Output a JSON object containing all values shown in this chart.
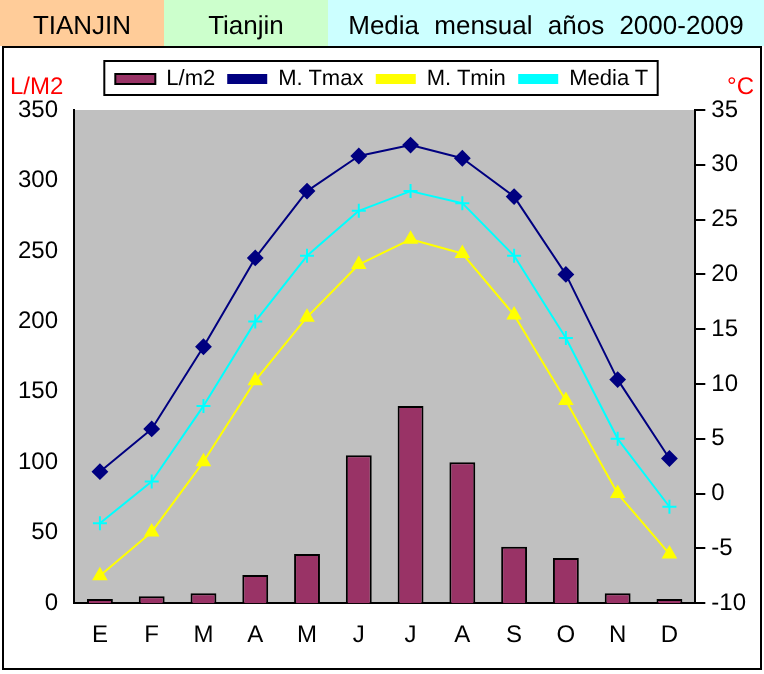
{
  "chart_data": {
    "type": "bar",
    "title": "TIANJIN",
    "subtitle": "Tianjin",
    "annotations": [
      "Media   mensual   años   2000-2009"
    ],
    "ylabel": "L/M2",
    "y2label": "°C",
    "categories": [
      "E",
      "F",
      "M",
      "A",
      "M",
      "J",
      "J",
      "A",
      "S",
      "O",
      "N",
      "D"
    ],
    "series": [
      {
        "name": "L/m2",
        "color": "#993366",
        "values": [
          3,
          5,
          7,
          20,
          35,
          105,
          140,
          100,
          40,
          32,
          7,
          3
        ]
      },
      {
        "name": "M. Tmax",
        "type": "line",
        "axis": "y2",
        "marker": "diamond",
        "color": "#000080",
        "values": [
          2,
          5.9,
          13.4,
          21.5,
          27.6,
          30.8,
          31.8,
          30.6,
          27.1,
          20,
          10.4,
          3.2
        ]
      },
      {
        "name": "M. Tmin",
        "type": "line",
        "axis": "y2",
        "marker": "triangle",
        "color": "#ffff00",
        "values": [
          -7.5,
          -3.5,
          2.9,
          10.3,
          16.1,
          20.9,
          23.2,
          21.9,
          16.3,
          8.5,
          0,
          -5.5
        ]
      },
      {
        "name": "Media T",
        "type": "line",
        "axis": "y2",
        "marker": "cross",
        "color": "#00ffff",
        "values": [
          -2.7,
          1.1,
          8,
          15.7,
          21.7,
          25.8,
          27.6,
          26.5,
          21.7,
          14.2,
          5,
          -1.2
        ]
      }
    ],
    "ylim": [
      0,
      350
    ],
    "yticks": [
      0,
      50,
      100,
      150,
      200,
      250,
      300,
      350
    ],
    "y2lim": [
      -10,
      35
    ],
    "y2ticks": [
      -10,
      -5,
      0,
      5,
      10,
      15,
      20,
      25,
      30,
      35
    ],
    "grid": false,
    "legend": "top"
  }
}
